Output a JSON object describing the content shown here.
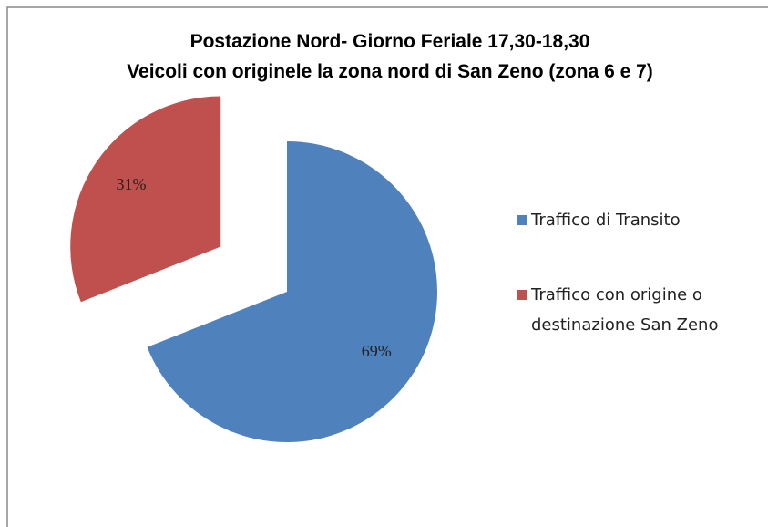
{
  "chart_data": {
    "type": "pie",
    "title": "Postazione  Nord- Giorno Feriale 17,30-18,30",
    "subtitle": "Veicoli con originele la zona nord di San Zeno (zona 6 e 7)",
    "categories": [
      "Traffico di Transito",
      "Traffico con origine o destinazione San Zeno"
    ],
    "values": [
      69,
      31
    ],
    "value_labels": [
      "69%",
      "31%"
    ],
    "colors": [
      "#4f81bd",
      "#c0504d"
    ],
    "explode": [
      false,
      true
    ],
    "legend": "right"
  }
}
